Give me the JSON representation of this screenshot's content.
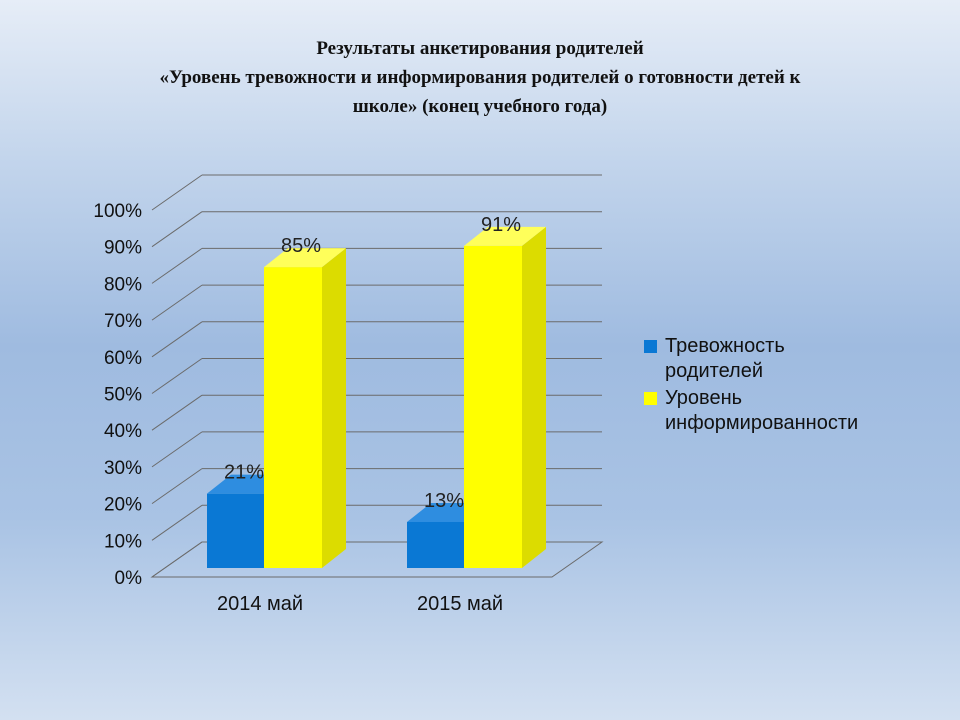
{
  "title": {
    "line1": "Результаты  анкетирования родителей",
    "line2": "«Уровень тревожности и информирования  родителей о готовности детей к",
    "line3": "школе»  (конец учебного года)"
  },
  "colors": {
    "series1_front": "#0a78d4",
    "series1_side": "#075aa4",
    "series1_top": "#2e8de0",
    "series2_front": "#ffff00",
    "series2_side": "#dcdc00",
    "series2_top": "#ffff5a",
    "grid": "#6b6b6b"
  },
  "chart_data": {
    "type": "bar",
    "style": "3d-clustered",
    "categories": [
      "2014 май",
      "2015 май"
    ],
    "series": [
      {
        "name": "Тревожность родителей",
        "legend_lines": [
          "Тревожность",
          "родителей"
        ],
        "values": [
          21,
          13
        ],
        "labels": [
          "21%",
          "13%"
        ]
      },
      {
        "name": "Уровень информированности",
        "legend_lines": [
          "Уровень",
          "информированности"
        ],
        "values": [
          85,
          91
        ],
        "labels": [
          "85%",
          "91%"
        ]
      }
    ],
    "ylim": [
      0,
      100
    ],
    "yticks": [
      "0%",
      "10%",
      "20%",
      "30%",
      "40%",
      "50%",
      "60%",
      "70%",
      "80%",
      "90%",
      "100%"
    ],
    "grid": true,
    "legend_position": "right"
  }
}
